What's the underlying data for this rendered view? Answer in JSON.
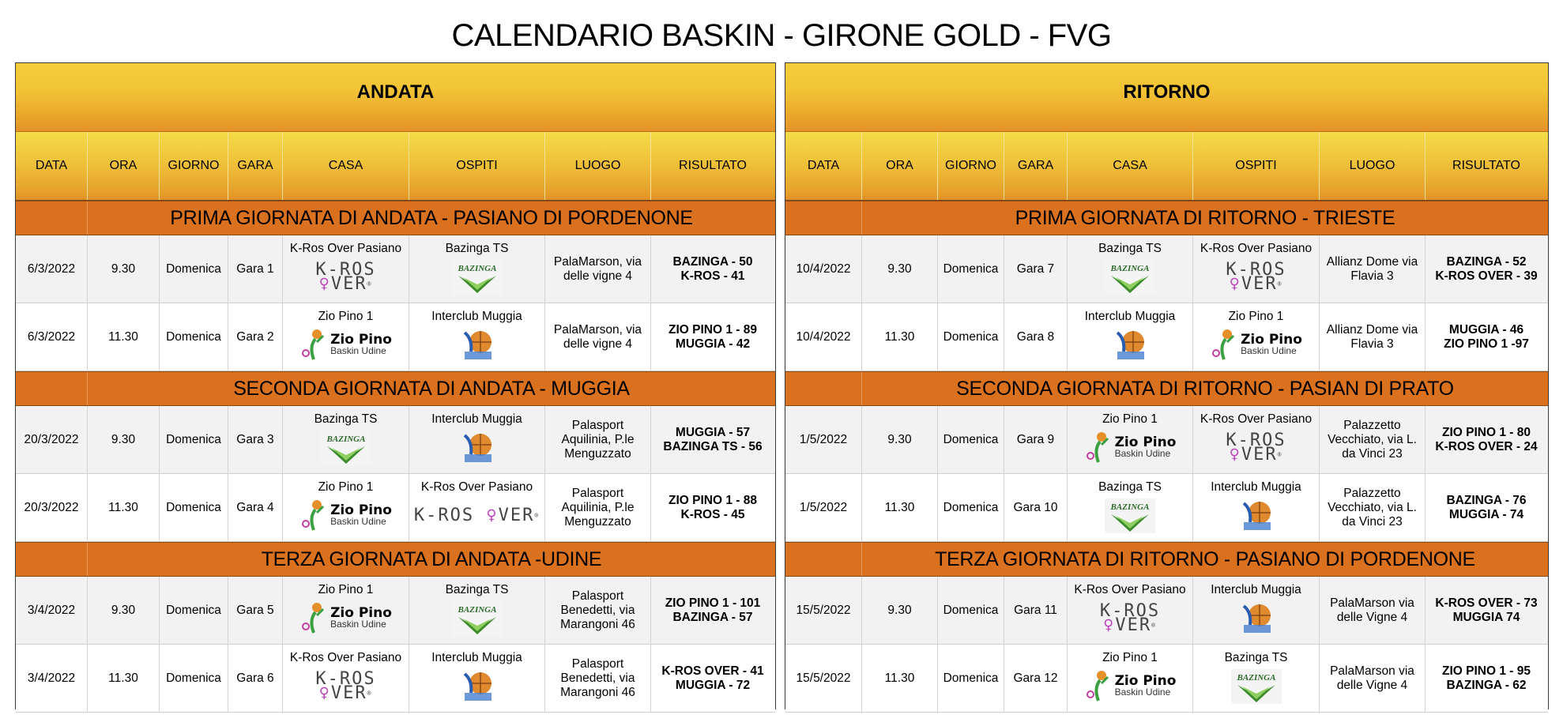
{
  "title": "CALENDARIO BASKIN - GIRONE GOLD - FVG",
  "colors": {
    "header_yellow": "#f2c435",
    "header_orange": "#e5932a",
    "section_orange": "#d9711e"
  },
  "columns": [
    "DATA",
    "ORA",
    "GIORNO",
    "GARA",
    "CASA",
    "OSPITI",
    "LUOGO",
    "RISULTATO"
  ],
  "logos": {
    "K-Ros Over Pasiano": {
      "icon": "kros-over-logo",
      "text": "K-ROS OVER"
    },
    "Bazinga TS": {
      "icon": "bazinga-logo",
      "text": "BAZINGA"
    },
    "Zio Pino 1": {
      "icon": "zio-pino-logo",
      "text": "Zio Pino",
      "subtext": "Baskin Udine"
    },
    "Interclub Muggia": {
      "icon": "interclub-muggia-logo",
      "text": ""
    }
  },
  "tables": [
    {
      "phase": "ANDATA",
      "sections": [
        {
          "title": "PRIMA GIORNATA DI ANDATA - PASIANO DI PORDENONE",
          "rows": [
            {
              "data": "6/3/2022",
              "ora": "9.30",
              "giorno": "Domenica",
              "gara": "Gara 1",
              "casa": "K-Ros Over Pasiano",
              "ospiti": "Bazinga TS",
              "luogo": "PalaMarson, via delle vigne 4",
              "risultato": [
                "BAZINGA - 50",
                "K-ROS - 41"
              ]
            },
            {
              "data": "6/3/2022",
              "ora": "11.30",
              "giorno": "Domenica",
              "gara": "Gara 2",
              "casa": "Zio Pino 1",
              "ospiti": "Interclub Muggia",
              "luogo": "PalaMarson, via delle vigne 4",
              "risultato": [
                "ZIO PINO 1 - 89",
                "MUGGIA - 42"
              ]
            }
          ]
        },
        {
          "title": "SECONDA GIORNATA DI ANDATA - MUGGIA",
          "rows": [
            {
              "data": "20/3/2022",
              "ora": "9.30",
              "giorno": "Domenica",
              "gara": "Gara 3",
              "casa": "Bazinga TS",
              "ospiti": "Interclub Muggia",
              "luogo": "Palasport Aquilinia, P.le Menguzzato",
              "risultato": [
                "MUGGIA - 57",
                "BAZINGA TS - 56"
              ]
            },
            {
              "data": "20/3/2022",
              "ora": "11.30",
              "giorno": "Domenica",
              "gara": "Gara 4",
              "casa": "Zio Pino 1",
              "ospiti": "K-Ros Over Pasiano",
              "luogo": "Palasport Aquilinia, P.le Menguzzato",
              "risultato": [
                "ZIO PINO 1 - 88",
                "K-ROS - 45"
              ]
            }
          ]
        },
        {
          "title": "TERZA GIORNATA DI ANDATA -UDINE",
          "rows": [
            {
              "data": "3/4/2022",
              "ora": "9.30",
              "giorno": "Domenica",
              "gara": "Gara 5",
              "casa": "Zio Pino 1",
              "ospiti": "Bazinga TS",
              "luogo": "Palasport Benedetti, via Marangoni 46",
              "risultato": [
                "ZIO PINO 1 - 101",
                "BAZINGA - 57"
              ]
            },
            {
              "data": "3/4/2022",
              "ora": "11.30",
              "giorno": "Domenica",
              "gara": "Gara 6",
              "casa": "K-Ros Over Pasiano",
              "ospiti": "Interclub Muggia",
              "luogo": "Palasport Benedetti, via Marangoni 46",
              "risultato": [
                "K-ROS OVER - 41",
                "MUGGIA - 72"
              ]
            }
          ]
        }
      ]
    },
    {
      "phase": "RITORNO",
      "sections": [
        {
          "title": "PRIMA GIORNATA DI RITORNO - TRIESTE",
          "rows": [
            {
              "data": "10/4/2022",
              "ora": "9.30",
              "giorno": "Domenica",
              "gara": "Gara 7",
              "casa": "Bazinga TS",
              "ospiti": "K-Ros Over Pasiano",
              "luogo": "Allianz Dome via Flavia 3",
              "risultato": [
                "BAZINGA - 52",
                "K-ROS OVER - 39"
              ]
            },
            {
              "data": "10/4/2022",
              "ora": "11.30",
              "giorno": "Domenica",
              "gara": "Gara 8",
              "casa": "Interclub Muggia",
              "ospiti": "Zio Pino 1",
              "luogo": "Allianz Dome via Flavia 3",
              "risultato": [
                "MUGGIA - 46",
                "ZIO PINO 1 -97"
              ]
            }
          ]
        },
        {
          "title": "SECONDA GIORNATA DI RITORNO - PASIAN DI PRATO",
          "rows": [
            {
              "data": "1/5/2022",
              "ora": "9.30",
              "giorno": "Domenica",
              "gara": "Gara 9",
              "casa": "Zio Pino 1",
              "ospiti": "K-Ros Over Pasiano",
              "luogo": "Palazzetto Vecchiato, via L. da Vinci 23",
              "risultato": [
                "ZIO PINO 1 - 80",
                "K-ROS OVER - 24"
              ]
            },
            {
              "data": "1/5/2022",
              "ora": "11.30",
              "giorno": "Domenica",
              "gara": "Gara 10",
              "casa": "Bazinga TS",
              "ospiti": "Interclub Muggia",
              "luogo": "Palazzetto Vecchiato, via L. da Vinci 23",
              "risultato": [
                "BAZINGA - 76",
                "MUGGIA - 74"
              ]
            }
          ]
        },
        {
          "title": "TERZA GIORNATA DI RITORNO - PASIANO DI PORDENONE",
          "rows": [
            {
              "data": "15/5/2022",
              "ora": "9.30",
              "giorno": "Domenica",
              "gara": "Gara 11",
              "casa": "K-Ros Over Pasiano",
              "ospiti": "Interclub Muggia",
              "luogo": "PalaMarson via delle Vigne 4",
              "risultato": [
                "K-ROS OVER - 73",
                "MUGGIA 74"
              ]
            },
            {
              "data": "15/5/2022",
              "ora": "11.30",
              "giorno": "Domenica",
              "gara": "Gara 12",
              "casa": "Zio Pino 1",
              "ospiti": "Bazinga TS",
              "luogo": "PalaMarson via delle Vigne 4",
              "risultato": [
                "ZIO PINO 1 - 95",
                "BAZINGA - 62"
              ]
            }
          ]
        }
      ]
    }
  ]
}
